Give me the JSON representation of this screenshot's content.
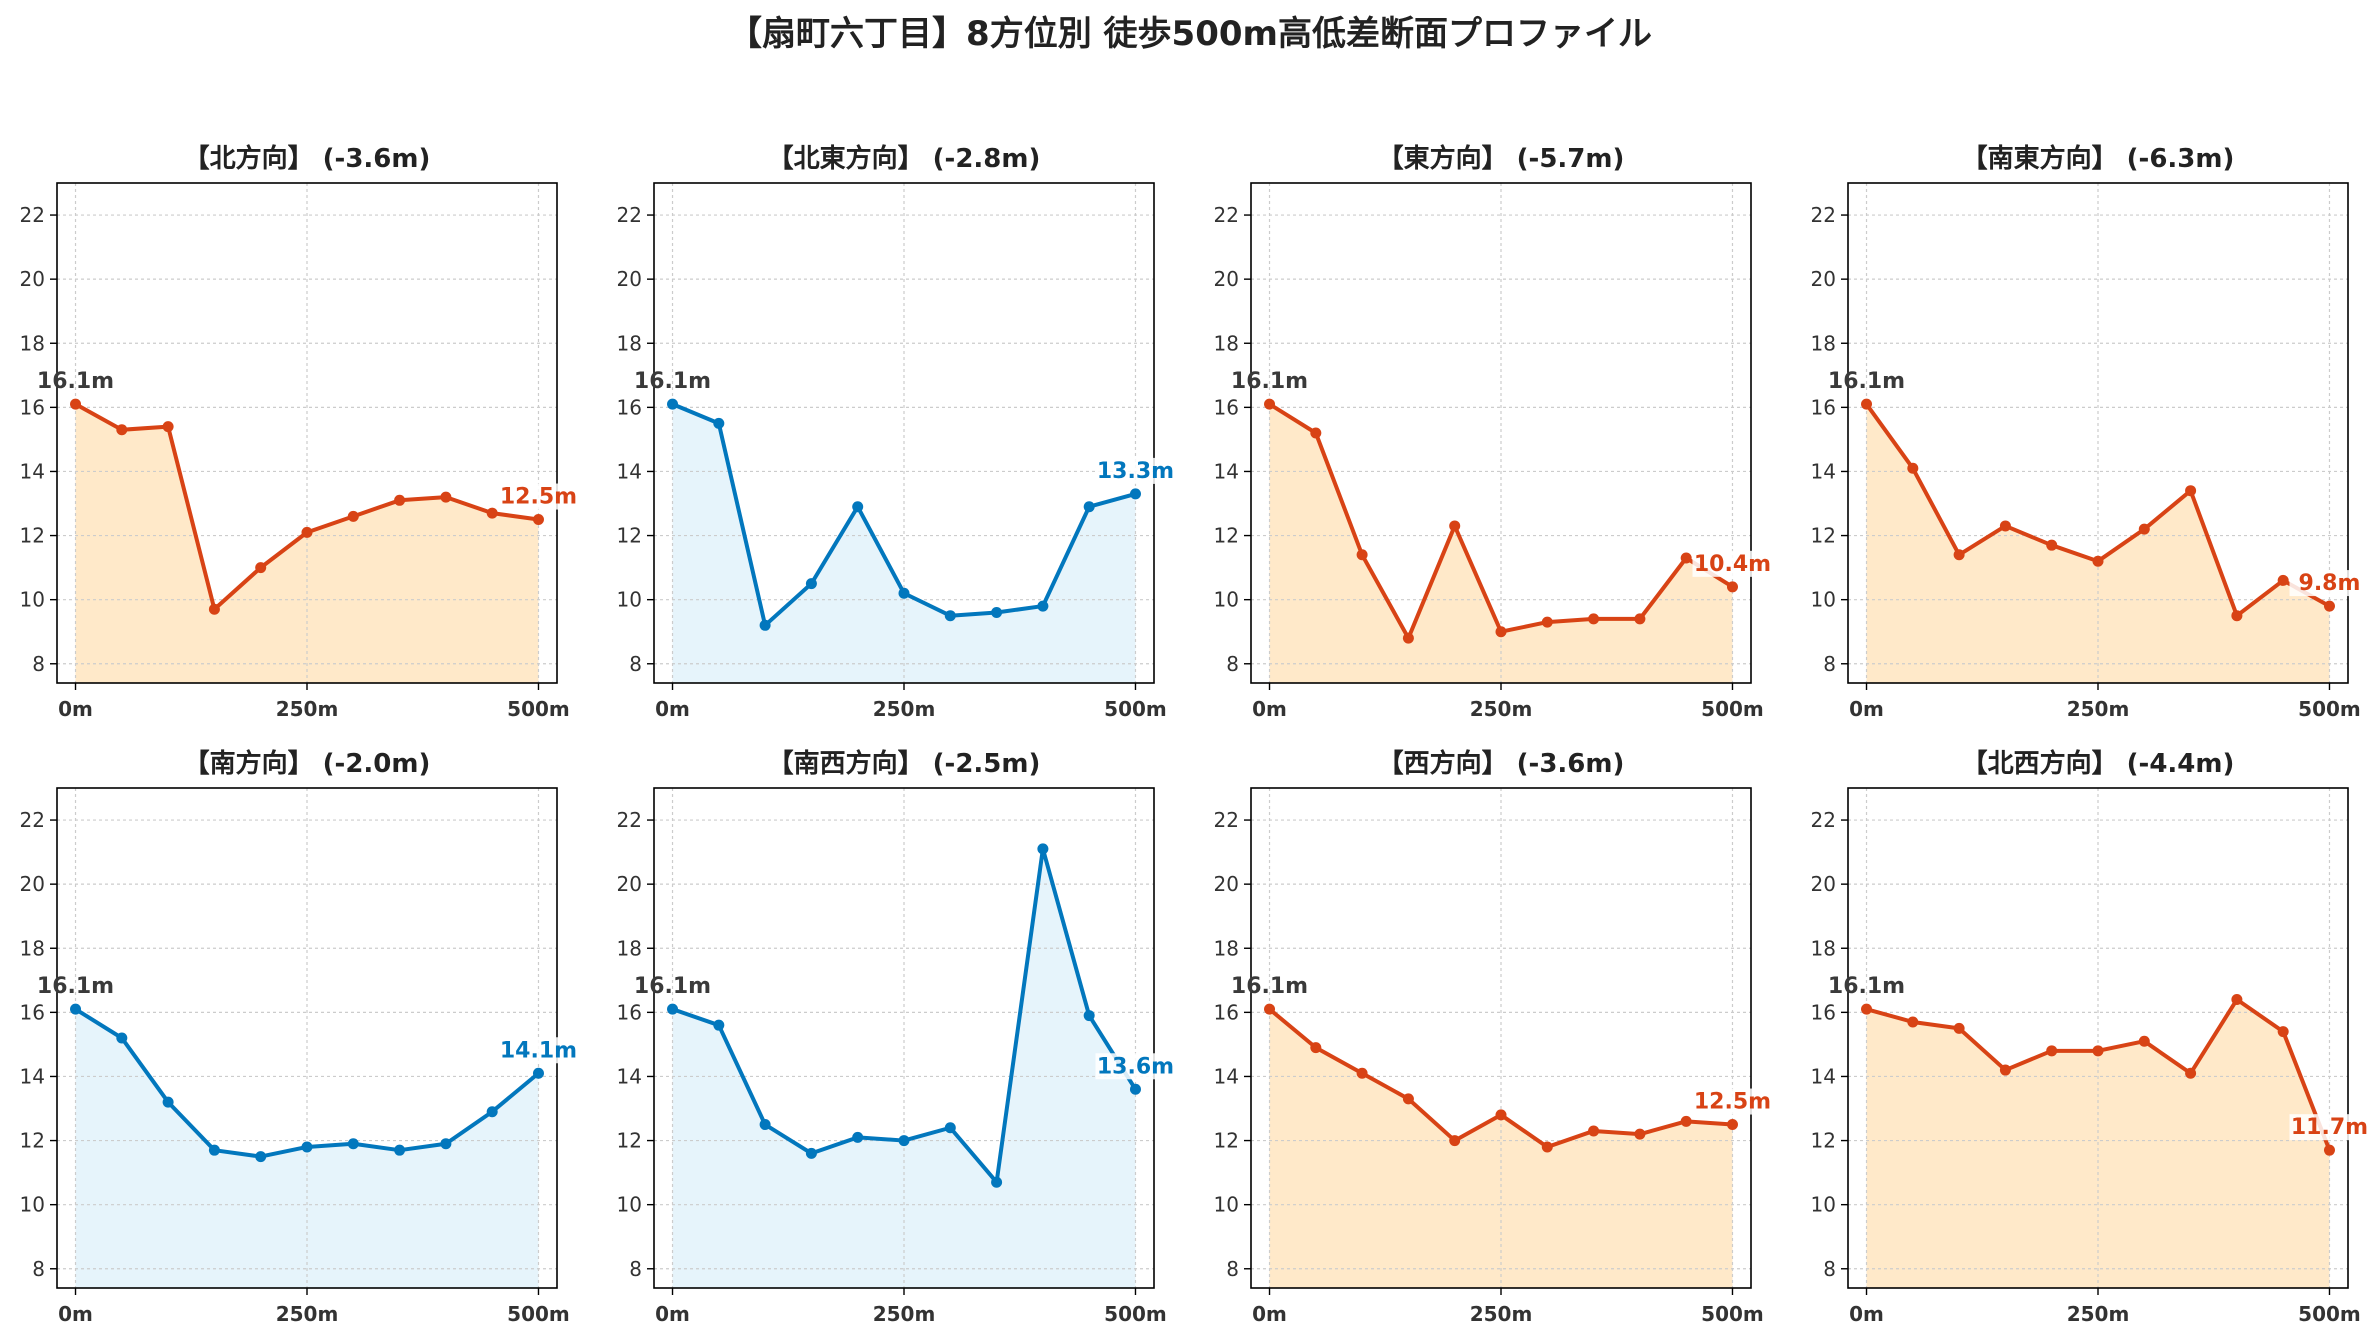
{
  "title": "【扇町六丁目】8方位別 徒歩500m高低差断面プロファイル",
  "colors": {
    "down": "#d84315",
    "up": "#0277bd",
    "down_fill": "#ffe9c9",
    "up_fill": "#e6f4fb",
    "start_label": "#3a3a3a",
    "grid": "#cccccc",
    "axis": "#000000",
    "tick_label": "#333333"
  },
  "x_tick_labels": [
    "0m",
    "250m",
    "500m"
  ],
  "chart_data": [
    {
      "type": "area",
      "title": "【北方向】 (-3.6m)",
      "trend": "down",
      "x": [
        0,
        50,
        100,
        150,
        200,
        250,
        300,
        350,
        400,
        450,
        500
      ],
      "values": [
        16.1,
        15.3,
        15.4,
        9.7,
        11.0,
        12.1,
        12.6,
        13.1,
        13.2,
        12.7,
        12.5
      ],
      "start_label": "16.1m",
      "end_label": "12.5m",
      "xlim": [
        -20,
        520
      ],
      "ylim": [
        7.4,
        23
      ],
      "yticks": [
        8,
        10,
        12,
        14,
        16,
        18,
        20,
        22
      ],
      "xticks": [
        0,
        250,
        500
      ],
      "grid": true
    },
    {
      "type": "area",
      "title": "【北東方向】 (-2.8m)",
      "trend": "up",
      "x": [
        0,
        50,
        100,
        150,
        200,
        250,
        300,
        350,
        400,
        450,
        500
      ],
      "values": [
        16.1,
        15.5,
        9.2,
        10.5,
        12.9,
        10.2,
        9.5,
        9.6,
        9.8,
        12.9,
        13.3
      ],
      "start_label": "16.1m",
      "end_label": "13.3m",
      "xlim": [
        -20,
        520
      ],
      "ylim": [
        7.4,
        23
      ],
      "yticks": [
        8,
        10,
        12,
        14,
        16,
        18,
        20,
        22
      ],
      "xticks": [
        0,
        250,
        500
      ],
      "grid": true
    },
    {
      "type": "area",
      "title": "【東方向】 (-5.7m)",
      "trend": "down",
      "x": [
        0,
        50,
        100,
        150,
        200,
        250,
        300,
        350,
        400,
        450,
        500
      ],
      "values": [
        16.1,
        15.2,
        11.4,
        8.8,
        12.3,
        9.0,
        9.3,
        9.4,
        9.4,
        11.3,
        10.4
      ],
      "start_label": "16.1m",
      "end_label": "10.4m",
      "xlim": [
        -20,
        520
      ],
      "ylim": [
        7.4,
        23
      ],
      "yticks": [
        8,
        10,
        12,
        14,
        16,
        18,
        20,
        22
      ],
      "xticks": [
        0,
        250,
        500
      ],
      "grid": true
    },
    {
      "type": "area",
      "title": "【南東方向】 (-6.3m)",
      "trend": "down",
      "x": [
        0,
        50,
        100,
        150,
        200,
        250,
        300,
        350,
        400,
        450,
        500
      ],
      "values": [
        16.1,
        14.1,
        11.4,
        12.3,
        11.7,
        11.2,
        12.2,
        13.4,
        9.5,
        10.6,
        9.8
      ],
      "start_label": "16.1m",
      "end_label": "9.8m",
      "xlim": [
        -20,
        520
      ],
      "ylim": [
        7.4,
        23
      ],
      "yticks": [
        8,
        10,
        12,
        14,
        16,
        18,
        20,
        22
      ],
      "xticks": [
        0,
        250,
        500
      ],
      "grid": true
    },
    {
      "type": "area",
      "title": "【南方向】 (-2.0m)",
      "trend": "up",
      "x": [
        0,
        50,
        100,
        150,
        200,
        250,
        300,
        350,
        400,
        450,
        500
      ],
      "values": [
        16.1,
        15.2,
        13.2,
        11.7,
        11.5,
        11.8,
        11.9,
        11.7,
        11.9,
        12.9,
        14.1
      ],
      "start_label": "16.1m",
      "end_label": "14.1m",
      "xlim": [
        -20,
        520
      ],
      "ylim": [
        7.4,
        23
      ],
      "yticks": [
        8,
        10,
        12,
        14,
        16,
        18,
        20,
        22
      ],
      "xticks": [
        0,
        250,
        500
      ],
      "grid": true
    },
    {
      "type": "area",
      "title": "【南西方向】 (-2.5m)",
      "trend": "up",
      "x": [
        0,
        50,
        100,
        150,
        200,
        250,
        300,
        350,
        400,
        450,
        500
      ],
      "values": [
        16.1,
        15.6,
        12.5,
        11.6,
        12.1,
        12.0,
        12.4,
        10.7,
        21.1,
        15.9,
        13.6
      ],
      "start_label": "16.1m",
      "end_label": "13.6m",
      "xlim": [
        -20,
        520
      ],
      "ylim": [
        7.4,
        23
      ],
      "yticks": [
        8,
        10,
        12,
        14,
        16,
        18,
        20,
        22
      ],
      "xticks": [
        0,
        250,
        500
      ],
      "grid": true
    },
    {
      "type": "area",
      "title": "【西方向】 (-3.6m)",
      "trend": "down",
      "x": [
        0,
        50,
        100,
        150,
        200,
        250,
        300,
        350,
        400,
        450,
        500
      ],
      "values": [
        16.1,
        14.9,
        14.1,
        13.3,
        12.0,
        12.8,
        11.8,
        12.3,
        12.2,
        12.6,
        12.5
      ],
      "start_label": "16.1m",
      "end_label": "12.5m",
      "xlim": [
        -20,
        520
      ],
      "ylim": [
        7.4,
        23
      ],
      "yticks": [
        8,
        10,
        12,
        14,
        16,
        18,
        20,
        22
      ],
      "xticks": [
        0,
        250,
        500
      ],
      "grid": true
    },
    {
      "type": "area",
      "title": "【北西方向】 (-4.4m)",
      "trend": "down",
      "x": [
        0,
        50,
        100,
        150,
        200,
        250,
        300,
        350,
        400,
        450,
        500
      ],
      "values": [
        16.1,
        15.7,
        15.5,
        14.2,
        14.8,
        14.8,
        15.1,
        14.1,
        16.4,
        15.4,
        11.7
      ],
      "start_label": "16.1m",
      "end_label": "11.7m",
      "xlim": [
        -20,
        520
      ],
      "ylim": [
        7.4,
        23
      ],
      "yticks": [
        8,
        10,
        12,
        14,
        16,
        18,
        20,
        22
      ],
      "xticks": [
        0,
        250,
        500
      ],
      "grid": true
    }
  ]
}
